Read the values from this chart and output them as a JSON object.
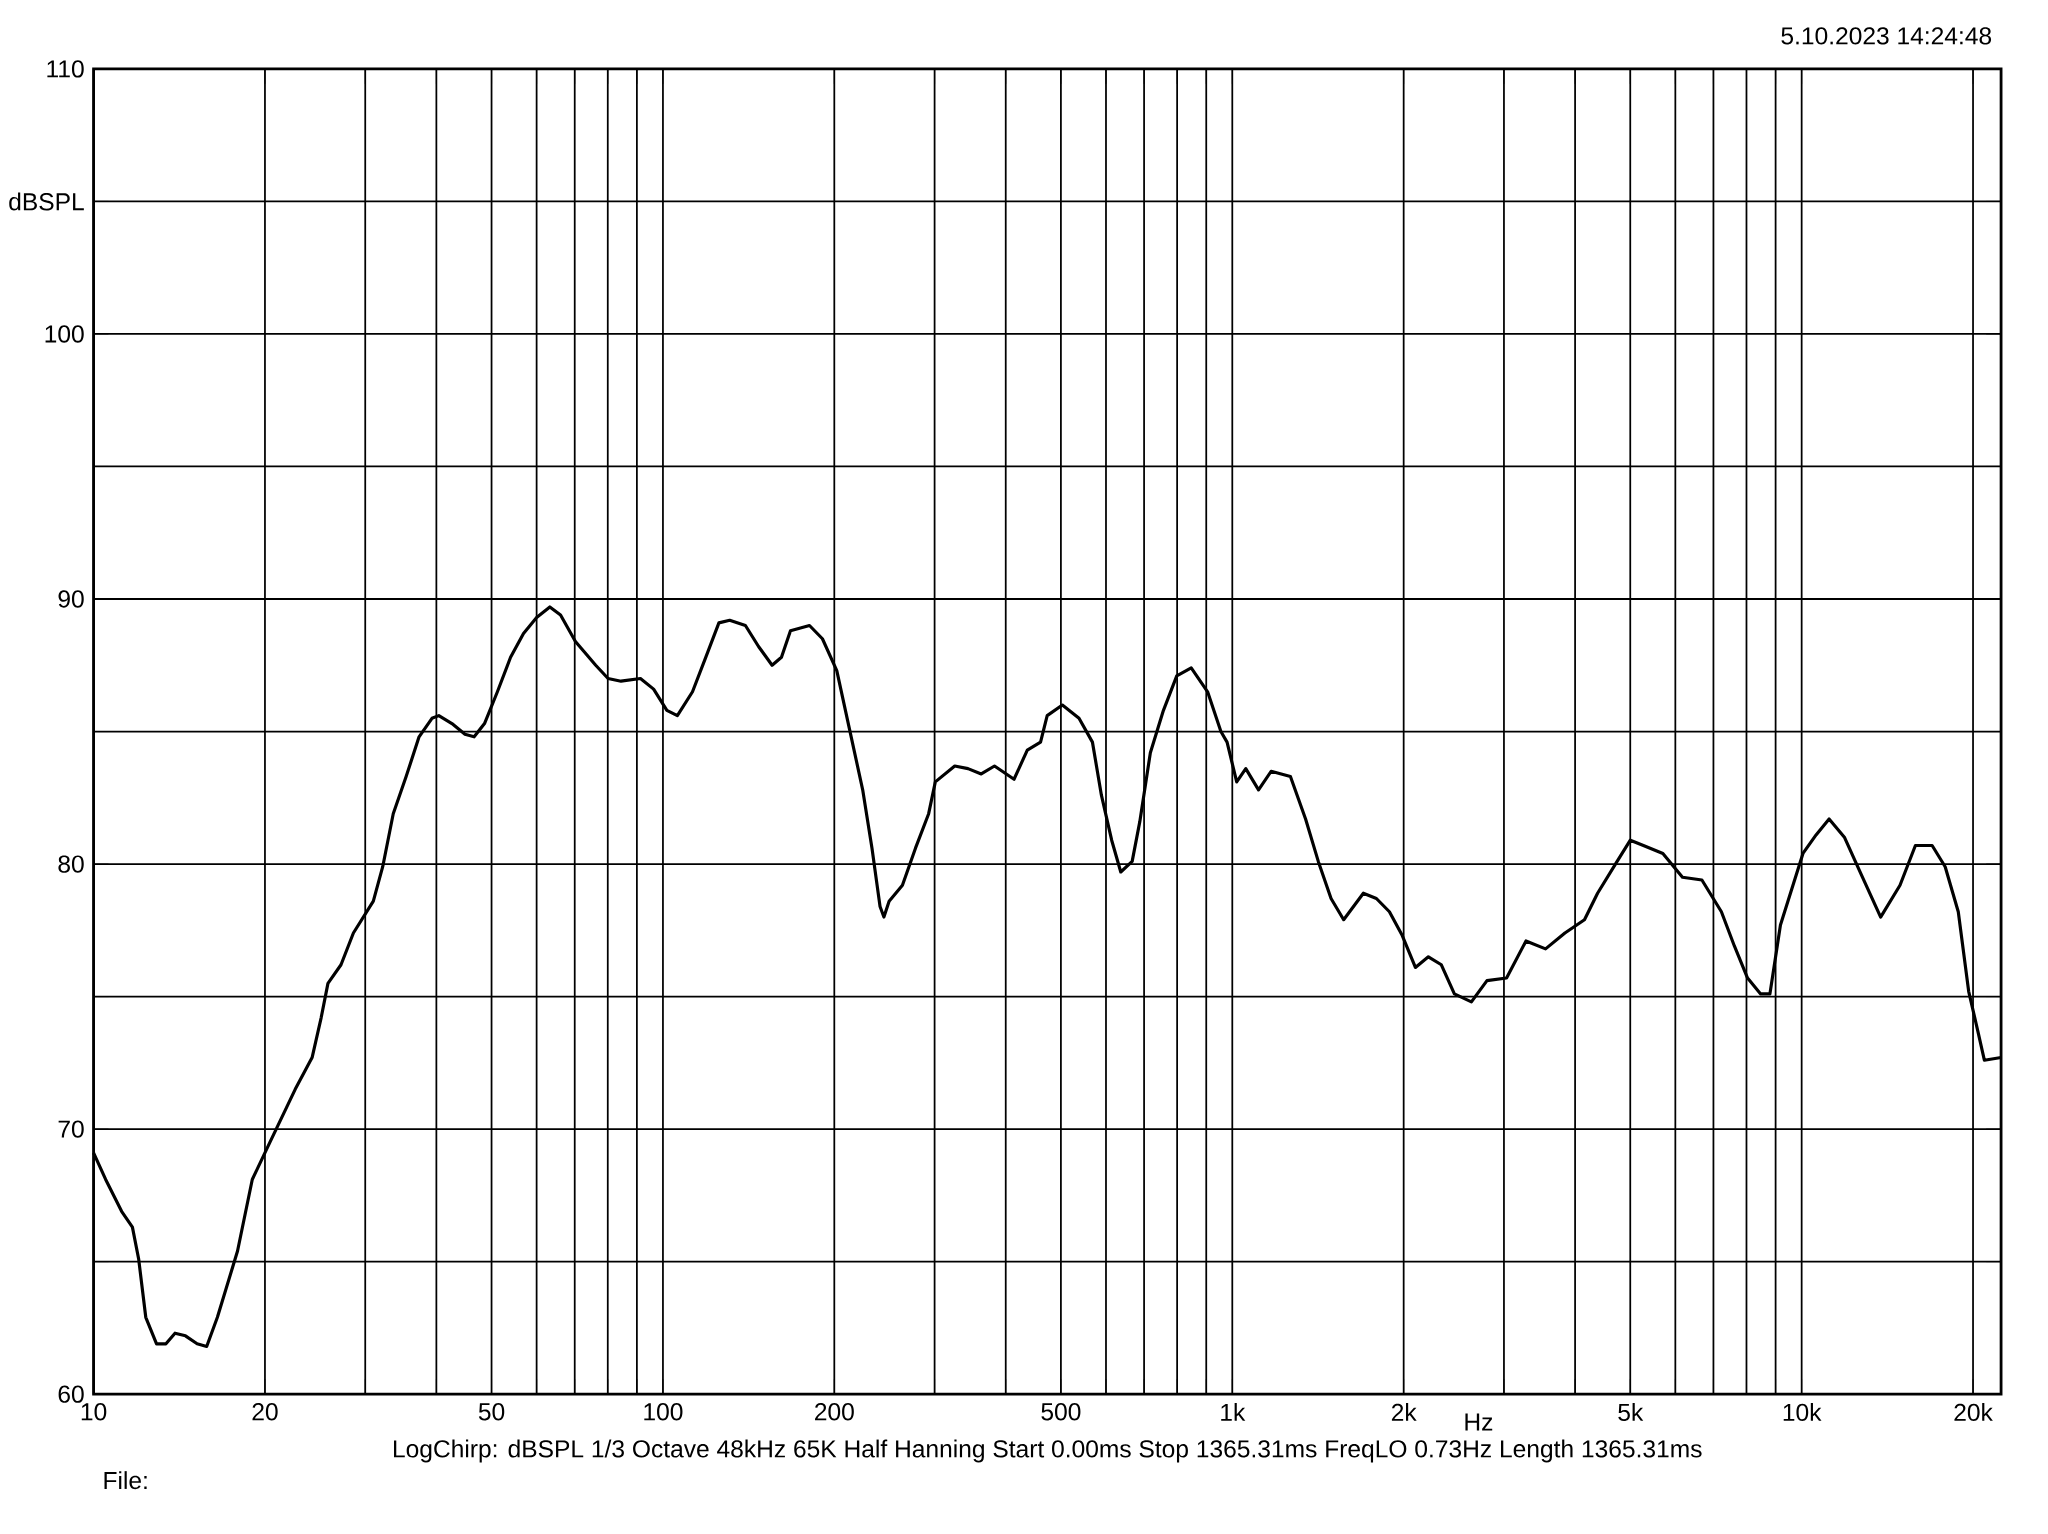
{
  "chart_data": {
    "type": "line",
    "xlabel": "Hz",
    "ylabel": "dBSPL",
    "log": "x",
    "grid": true,
    "marker": "none",
    "line_style": "solid",
    "xlim": [
      10,
      22400
    ],
    "ylim": [
      60,
      110
    ],
    "xticks": [
      10,
      20,
      {
        "value": 30,
        "label": null
      },
      {
        "value": 40,
        "label": null
      },
      50,
      {
        "value": 60,
        "label": null
      },
      {
        "value": 70,
        "label": null
      },
      {
        "value": 80,
        "label": null
      },
      {
        "value": 90,
        "label": null
      },
      100,
      200,
      {
        "value": 300,
        "label": null
      },
      {
        "value": 400,
        "label": null
      },
      500,
      {
        "value": 600,
        "label": null
      },
      {
        "value": 700,
        "label": null
      },
      {
        "value": 800,
        "label": null
      },
      {
        "value": 900,
        "label": null
      },
      {
        "value": 1000,
        "label": "1k"
      },
      {
        "value": 2000,
        "label": "2k"
      },
      {
        "value": 3000,
        "label": null
      },
      {
        "value": 4000,
        "label": null
      },
      {
        "value": 5000,
        "label": "5k"
      },
      {
        "value": 6000,
        "label": null
      },
      {
        "value": 7000,
        "label": null
      },
      {
        "value": 8000,
        "label": null
      },
      {
        "value": 9000,
        "label": null
      },
      {
        "value": 10000,
        "label": "10k"
      },
      {
        "value": 20000,
        "label": "20k"
      }
    ],
    "yticks": [
      60,
      {
        "value": 65,
        "label": null
      },
      70,
      {
        "value": 75,
        "label": null
      },
      80,
      {
        "value": 85,
        "label": null
      },
      90,
      {
        "value": 95,
        "label": null
      },
      100,
      {
        "value": 105,
        "label": null
      },
      110
    ],
    "annotations": [
      "5.10.2023 14:24:48",
      "LogChirp:  dBSPL   1/3 Octave   48kHz   65K   Half Hanning   Start 0.00ms   Stop 1365.31ms   FreqLO 0.73Hz   Length 1365.31ms",
      "File:"
    ],
    "series": [
      {
        "color": "#000000",
        "x": [
          10,
          10.5,
          11.2,
          11.7,
          12,
          12.35,
          12.9,
          13.4,
          13.9,
          14.5,
          15.2,
          15.8,
          16.5,
          17.9,
          19,
          20.4,
          22.6,
          24.2,
          25.1,
          25.8,
          27.2,
          28.6,
          31,
          32.2,
          33.6,
          35.4,
          37.3,
          39.3,
          40.4,
          42.6,
          44.9,
          46.6,
          48.6,
          51.2,
          54,
          56.9,
          60,
          63.3,
          66.1,
          70.2,
          76.2,
          80.1,
          84.4,
          91.3,
          96.3,
          101.6,
          106,
          112.7,
          118.9,
          125.4,
          131,
          139.6,
          147.3,
          155.5,
          161.5,
          167.5,
          180.9,
          190.6,
          202,
          212.6,
          224.3,
          232.9,
          240.6,
          244.4,
          249.6,
          263.4,
          277.7,
          292.9,
          300.9,
          325.5,
          343.4,
          362.3,
          382.3,
          413.7,
          436.5,
          460.5,
          473,
          503,
          538,
          568,
          589,
          614,
          637,
          667,
          688,
          718,
          757,
          799,
          847,
          905,
          955,
          979,
          1018,
          1056,
          1112,
          1170,
          1265,
          1345,
          1416,
          1491,
          1569,
          1699,
          1791,
          1888,
          1989,
          2097,
          2210,
          2329,
          2455,
          2630,
          2801,
          3032,
          3280,
          3550,
          3839,
          4155,
          4381,
          4741,
          5001,
          5273,
          5705,
          6176,
          6681,
          7229,
          7622,
          8035,
          8472,
          8795,
          9178,
          10053,
          10600,
          11174,
          11897,
          12728,
          13765,
          14885,
          15841,
          16951,
          17869,
          18840,
          19649,
          20390,
          20936,
          22400
        ],
        "values": [
          69.1,
          68.1,
          66.9,
          66.3,
          65.1,
          62.9,
          61.9,
          61.9,
          62.3,
          62.2,
          61.9,
          61.8,
          62.9,
          65.4,
          68.1,
          69.5,
          71.5,
          72.7,
          74.2,
          75.5,
          76.2,
          77.4,
          78.6,
          79.9,
          81.9,
          83.3,
          84.8,
          85.5,
          85.6,
          85.3,
          84.9,
          84.8,
          85.3,
          86.5,
          87.8,
          88.7,
          89.3,
          89.7,
          89.4,
          88.4,
          87.5,
          87,
          86.9,
          87,
          86.6,
          85.8,
          85.6,
          86.5,
          87.8,
          89.1,
          89.2,
          89,
          88.2,
          87.5,
          87.8,
          88.8,
          89,
          88.5,
          87.3,
          85.1,
          82.8,
          80.6,
          78.4,
          78,
          78.6,
          79.2,
          80.6,
          81.9,
          83.1,
          83.7,
          83.6,
          83.4,
          83.7,
          83.2,
          84.3,
          84.6,
          85.6,
          86,
          85.5,
          84.6,
          82.6,
          80.9,
          79.7,
          80.1,
          81.6,
          84.2,
          85.8,
          87.1,
          87.4,
          86.5,
          85,
          84.6,
          83.1,
          83.6,
          82.8,
          83.5,
          83.3,
          81.7,
          80.1,
          78.7,
          77.9,
          78.9,
          78.7,
          78.2,
          77.3,
          76.1,
          76.5,
          76.2,
          75.1,
          74.8,
          75.6,
          75.7,
          77.1,
          76.8,
          77.4,
          77.9,
          78.9,
          80.1,
          80.9,
          80.7,
          80.4,
          79.5,
          79.4,
          78.2,
          76.9,
          75.7,
          75.1,
          75.1,
          77.7,
          80.4,
          81.1,
          81.7,
          81,
          79.6,
          78,
          79.2,
          80.7,
          80.7,
          79.9,
          78.2,
          75.2,
          73.7,
          72.6,
          72.7
        ]
      }
    ]
  }
}
